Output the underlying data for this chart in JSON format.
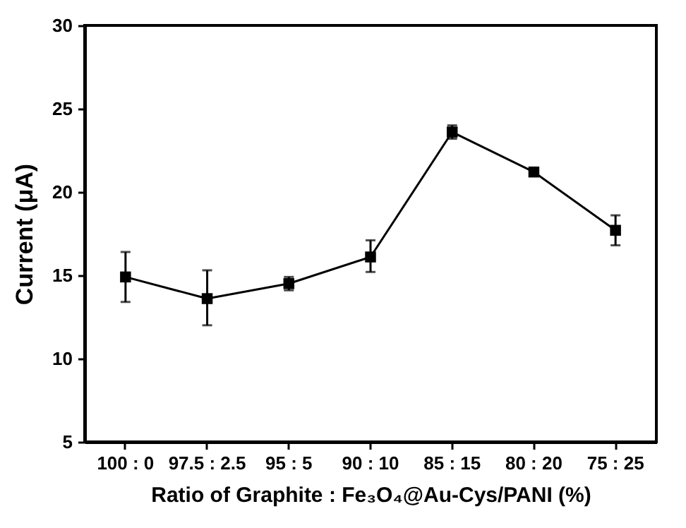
{
  "chart_data": {
    "type": "line",
    "xlabel": "Ratio of Graphite : Fe₃O₄@Au-Cys/PANI (%)",
    "ylabel": "Current (μA)",
    "categories": [
      "100 : 0",
      "97.5 : 2.5",
      "95 : 5",
      "90 : 10",
      "85 : 15",
      "80 : 20",
      "75 : 25"
    ],
    "series": [
      {
        "color": "#000000",
        "values": [
          14.9,
          13.6,
          14.5,
          16.1,
          23.6,
          21.2,
          17.7
        ],
        "errors": [
          [
            13.4,
            16.4
          ],
          [
            12.0,
            15.3
          ],
          [
            14.1,
            14.9
          ],
          [
            15.2,
            17.1
          ],
          [
            23.2,
            24.0
          ],
          null,
          [
            16.8,
            18.6
          ]
        ]
      }
    ],
    "ylim": [
      5,
      30
    ],
    "yticks": [
      5,
      10,
      15,
      20,
      25,
      30
    ],
    "grid": false,
    "marker": "square",
    "line_style": "solid"
  }
}
